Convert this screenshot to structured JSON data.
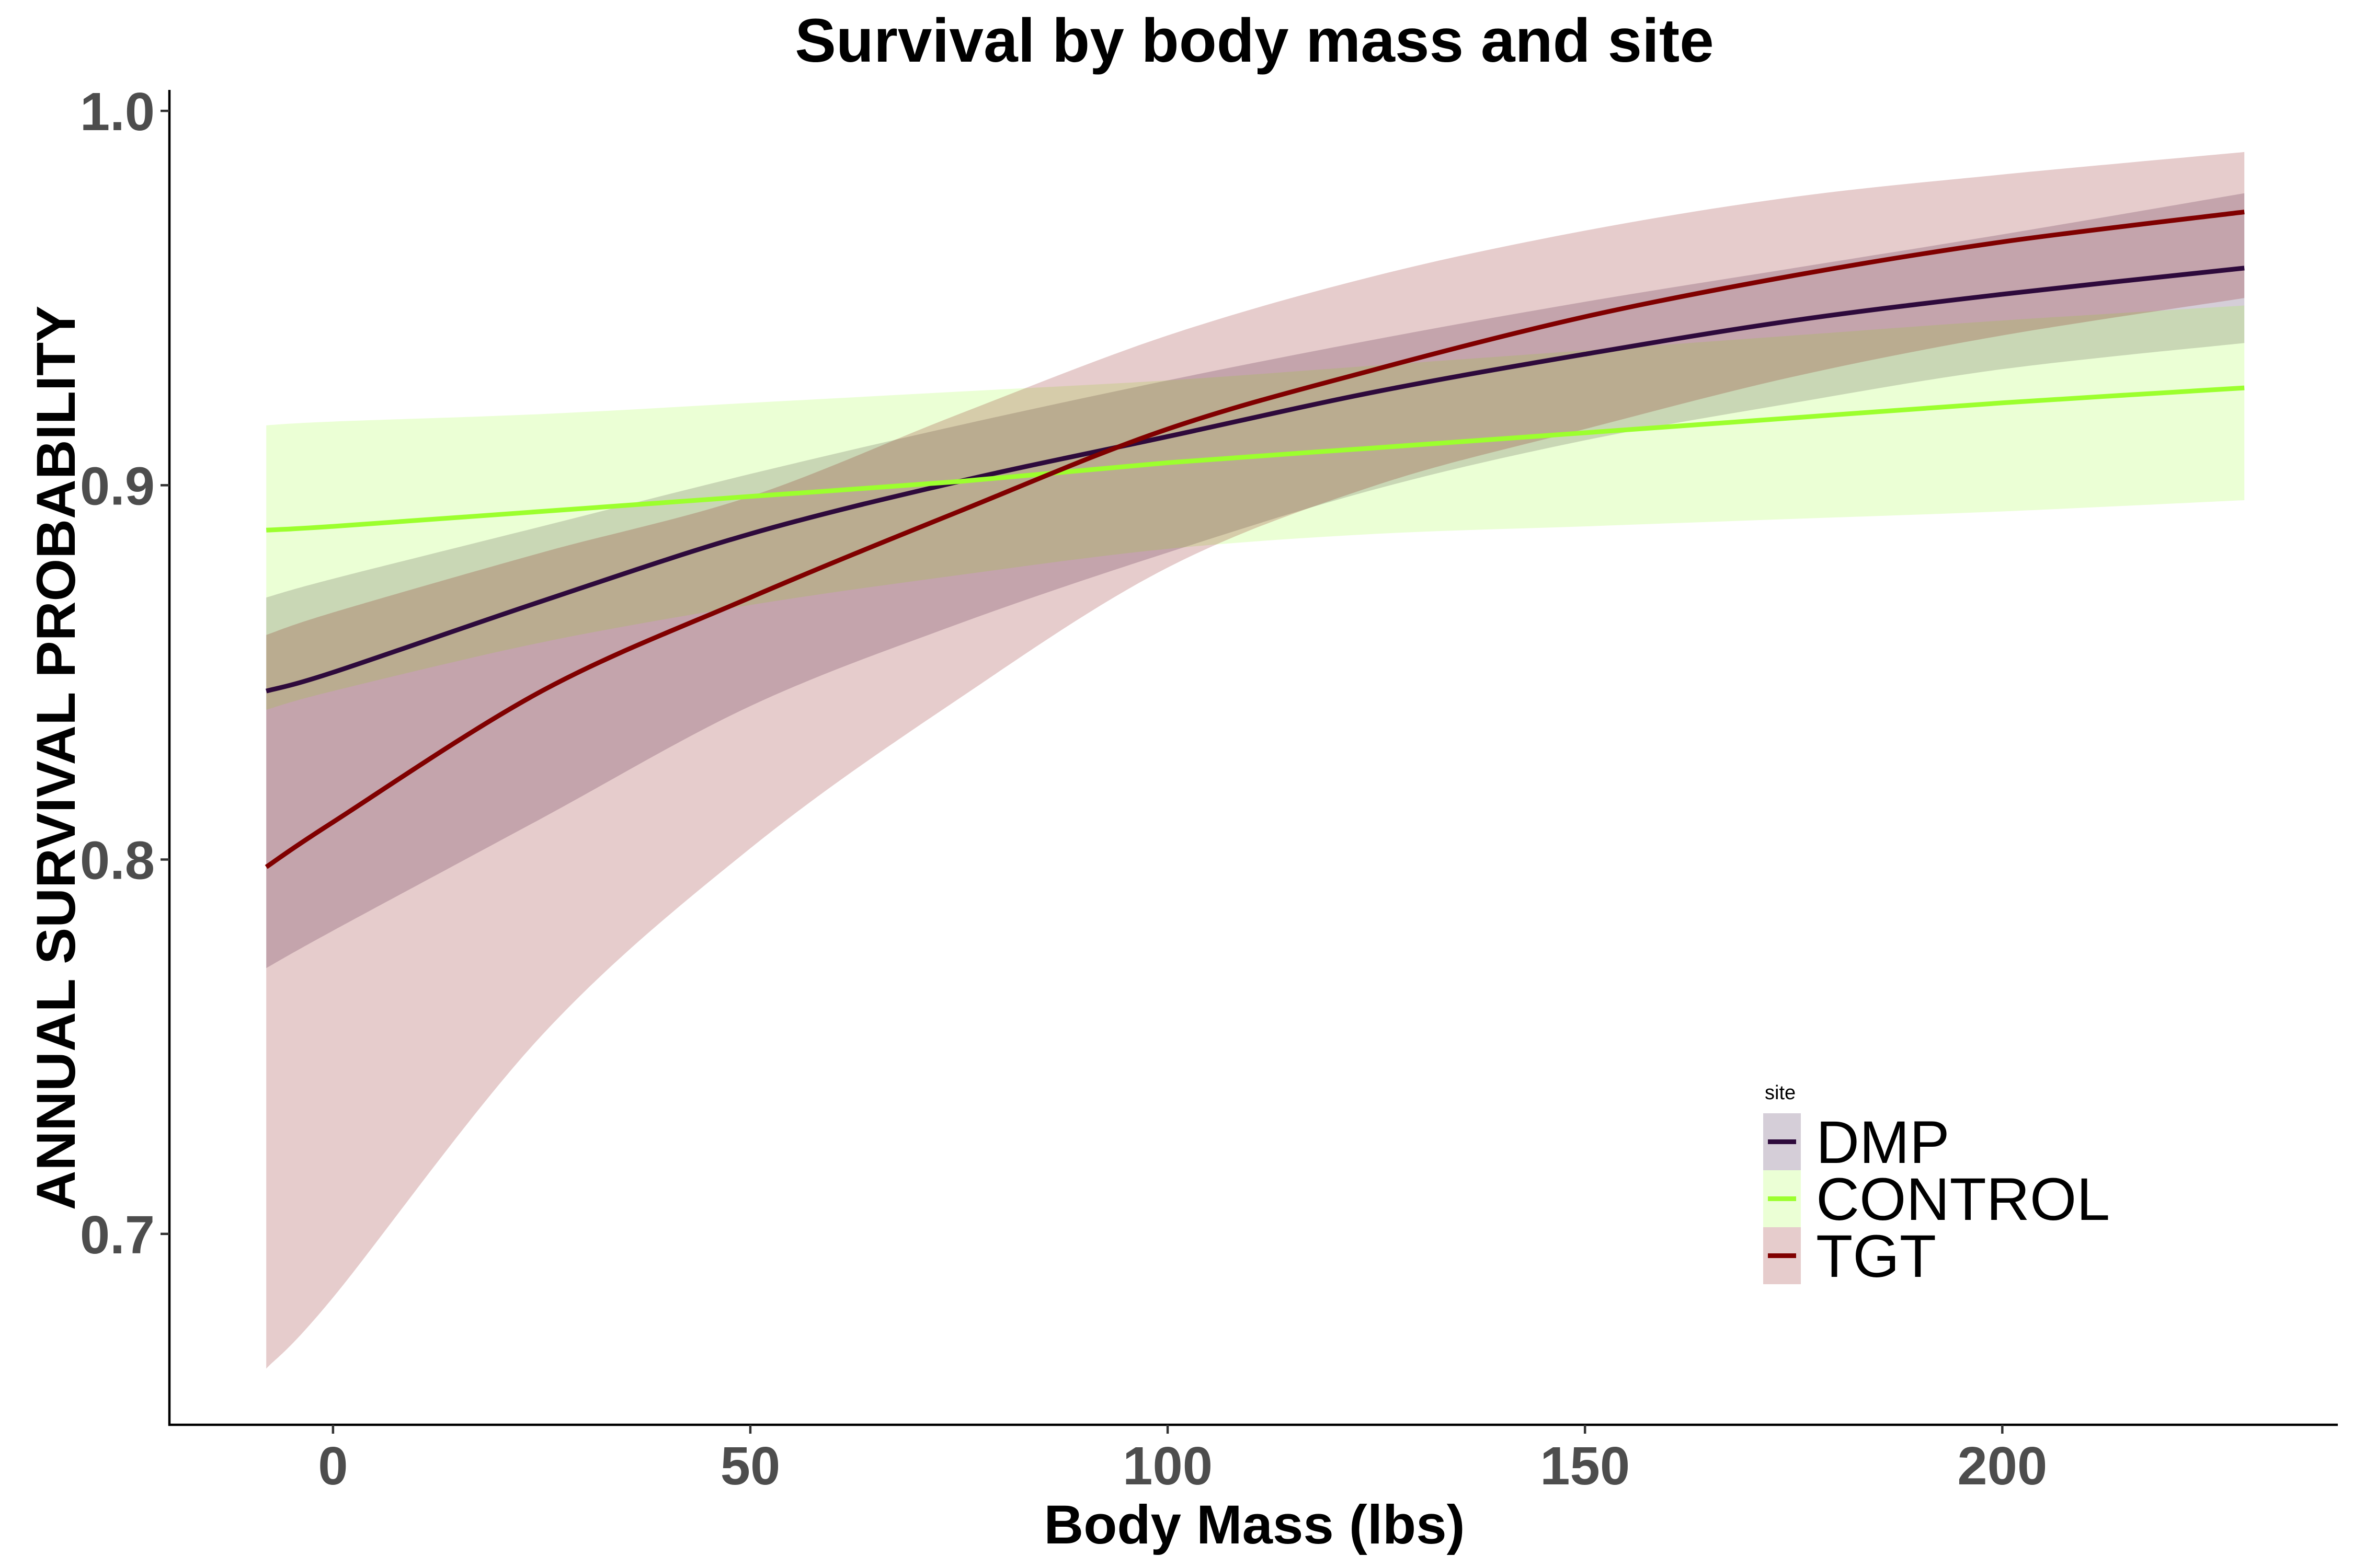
{
  "chart_data": {
    "type": "line",
    "title": "Survival by body mass and site",
    "xlabel": "Body Mass (lbs)",
    "ylabel": "ANNUAL SURVIVAL PROBABILITY",
    "xlim": [
      -19.6,
      240.2
    ],
    "ylim": [
      0.649,
      1.0056
    ],
    "xticks": [
      0,
      50,
      100,
      150,
      200
    ],
    "xtick_labels": [
      "0",
      "50",
      "100",
      "150",
      "200"
    ],
    "yticks": [
      0.7,
      0.8,
      0.9,
      1.0
    ],
    "ytick_labels": [
      "0.7",
      "0.8",
      "0.9",
      "1.0"
    ],
    "grid": false,
    "legend": {
      "title": "site",
      "position": "bottom-right"
    },
    "x": [
      -8,
      0,
      25,
      50,
      75,
      100,
      125,
      150,
      175,
      200,
      229
    ],
    "series": [
      {
        "name": "DMP",
        "color": "#2E0A3C",
        "y": [
          0.845,
          0.85,
          0.869,
          0.887,
          0.901,
          0.913,
          0.925,
          0.935,
          0.944,
          0.951,
          0.958
        ],
        "lower": [
          0.771,
          0.781,
          0.811,
          0.841,
          0.863,
          0.882,
          0.899,
          0.912,
          0.922,
          0.931,
          0.938
        ],
        "upper": [
          0.87,
          0.875,
          0.889,
          0.903,
          0.916,
          0.928,
          0.939,
          0.949,
          0.958,
          0.967,
          0.978
        ]
      },
      {
        "name": "CONTROL",
        "color": "#9CFF2E",
        "y": [
          0.888,
          0.889,
          0.893,
          0.897,
          0.901,
          0.906,
          0.91,
          0.914,
          0.918,
          0.922,
          0.926
        ],
        "lower": [
          0.84,
          0.845,
          0.858,
          0.868,
          0.876,
          0.883,
          0.887,
          0.889,
          0.891,
          0.893,
          0.896
        ],
        "upper": [
          0.916,
          0.917,
          0.919,
          0.922,
          0.925,
          0.928,
          0.932,
          0.936,
          0.94,
          0.944,
          0.948
        ]
      },
      {
        "name": "TGT",
        "color": "#800000",
        "y": [
          0.798,
          0.81,
          0.845,
          0.87,
          0.893,
          0.915,
          0.931,
          0.945,
          0.956,
          0.965,
          0.973
        ],
        "lower": [
          0.664,
          0.683,
          0.753,
          0.803,
          0.843,
          0.878,
          0.9,
          0.915,
          0.929,
          0.94,
          0.95
        ],
        "upper": [
          0.86,
          0.866,
          0.882,
          0.897,
          0.919,
          0.94,
          0.956,
          0.968,
          0.977,
          0.983,
          0.989
        ]
      }
    ]
  }
}
